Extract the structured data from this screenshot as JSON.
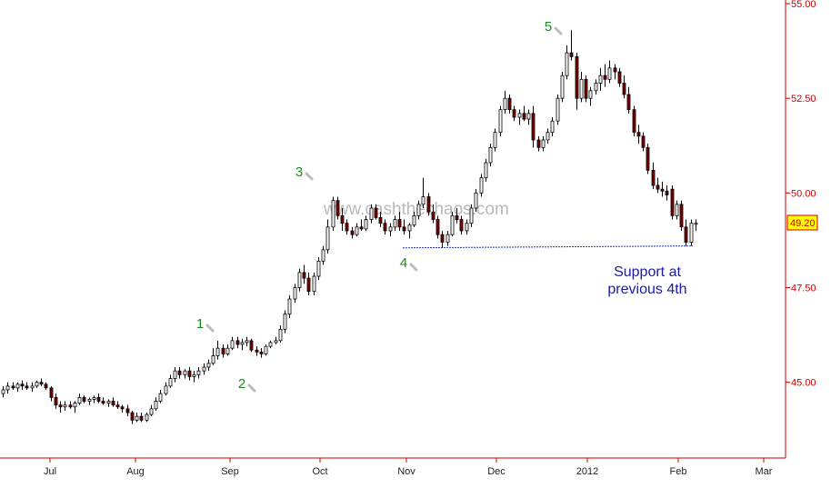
{
  "chart_data": {
    "type": "candlestick",
    "y_axis": {
      "min": 43.0,
      "max": 55.0,
      "ticks": [
        "45.00",
        "47.50",
        "50.00",
        "52.50",
        "55.00"
      ],
      "position": "right"
    },
    "x_axis": {
      "ticks": [
        "Jul",
        "Aug",
        "Sep",
        "Oct",
        "Nov",
        "Dec",
        "2012",
        "Feb",
        "Mar"
      ]
    },
    "last_price": "49.20",
    "watermark": "www.cashthechaos.com",
    "wave_labels": [
      "1",
      "2",
      "3",
      "4",
      "5"
    ],
    "annotation": {
      "line1": "Support at",
      "line2": "previous 4th"
    },
    "support_level": 48.6,
    "colors": {
      "axis": "#cc0000",
      "up_candle": "#ffffff",
      "down_candle": "#7a0000",
      "wave": "#1a8a1a",
      "annotation": "#1a1aaa",
      "support": "#2233bb",
      "last_price_box": "#ffff00"
    },
    "candles": [
      [
        44.7,
        44.9,
        44.6,
        44.8
      ],
      [
        44.8,
        45.0,
        44.7,
        44.9
      ],
      [
        44.9,
        45.0,
        44.8,
        44.85
      ],
      [
        44.85,
        45.0,
        44.75,
        44.95
      ],
      [
        44.95,
        45.05,
        44.8,
        44.9
      ],
      [
        44.9,
        45.0,
        44.8,
        44.85
      ],
      [
        44.85,
        45.0,
        44.75,
        44.9
      ],
      [
        44.9,
        45.05,
        44.85,
        45.0
      ],
      [
        45.0,
        45.1,
        44.9,
        44.95
      ],
      [
        44.95,
        45.0,
        44.8,
        44.85
      ],
      [
        44.85,
        44.9,
        44.5,
        44.6
      ],
      [
        44.6,
        44.7,
        44.3,
        44.4
      ],
      [
        44.4,
        44.5,
        44.2,
        44.35
      ],
      [
        44.35,
        44.5,
        44.25,
        44.4
      ],
      [
        44.4,
        44.5,
        44.3,
        44.35
      ],
      [
        44.35,
        44.5,
        44.2,
        44.45
      ],
      [
        44.45,
        44.7,
        44.4,
        44.6
      ],
      [
        44.6,
        44.65,
        44.45,
        44.5
      ],
      [
        44.5,
        44.6,
        44.4,
        44.55
      ],
      [
        44.55,
        44.65,
        44.45,
        44.6
      ],
      [
        44.6,
        44.7,
        44.45,
        44.5
      ],
      [
        44.5,
        44.6,
        44.4,
        44.45
      ],
      [
        44.45,
        44.55,
        44.35,
        44.5
      ],
      [
        44.5,
        44.6,
        44.35,
        44.4
      ],
      [
        44.4,
        44.5,
        44.3,
        44.35
      ],
      [
        44.35,
        44.4,
        44.2,
        44.3
      ],
      [
        44.3,
        44.4,
        44.1,
        44.2
      ],
      [
        44.2,
        44.25,
        43.9,
        44.0
      ],
      [
        44.0,
        44.2,
        43.95,
        44.1
      ],
      [
        44.1,
        44.2,
        43.95,
        44.0
      ],
      [
        44.0,
        44.2,
        43.95,
        44.15
      ],
      [
        44.15,
        44.4,
        44.1,
        44.3
      ],
      [
        44.3,
        44.6,
        44.25,
        44.5
      ],
      [
        44.5,
        44.8,
        44.45,
        44.7
      ],
      [
        44.7,
        45.0,
        44.65,
        44.9
      ],
      [
        44.9,
        45.2,
        44.85,
        45.1
      ],
      [
        45.1,
        45.4,
        45.0,
        45.3
      ],
      [
        45.3,
        45.4,
        45.1,
        45.2
      ],
      [
        45.2,
        45.35,
        45.1,
        45.3
      ],
      [
        45.3,
        45.4,
        45.05,
        45.15
      ],
      [
        45.15,
        45.3,
        45.0,
        45.2
      ],
      [
        45.2,
        45.4,
        45.1,
        45.3
      ],
      [
        45.3,
        45.5,
        45.2,
        45.4
      ],
      [
        45.4,
        45.6,
        45.3,
        45.5
      ],
      [
        45.5,
        45.9,
        45.45,
        45.7
      ],
      [
        45.7,
        46.1,
        45.6,
        45.9
      ],
      [
        45.9,
        46.0,
        45.65,
        45.75
      ],
      [
        45.75,
        46.0,
        45.7,
        45.9
      ],
      [
        45.9,
        46.2,
        45.85,
        46.1
      ],
      [
        46.1,
        46.2,
        45.9,
        46.0
      ],
      [
        46.0,
        46.15,
        45.85,
        46.05
      ],
      [
        46.05,
        46.2,
        45.95,
        46.1
      ],
      [
        46.1,
        46.15,
        45.8,
        45.85
      ],
      [
        45.85,
        45.95,
        45.7,
        45.8
      ],
      [
        45.8,
        45.9,
        45.65,
        45.75
      ],
      [
        45.75,
        46.0,
        45.7,
        45.95
      ],
      [
        45.95,
        46.1,
        45.9,
        46.05
      ],
      [
        46.05,
        46.2,
        46.0,
        46.1
      ],
      [
        46.1,
        46.5,
        46.05,
        46.4
      ],
      [
        46.4,
        46.9,
        46.3,
        46.8
      ],
      [
        46.8,
        47.3,
        46.7,
        47.2
      ],
      [
        47.2,
        47.6,
        47.1,
        47.5
      ],
      [
        47.5,
        48.0,
        47.4,
        47.9
      ],
      [
        47.9,
        48.1,
        47.6,
        47.75
      ],
      [
        47.75,
        47.9,
        47.3,
        47.4
      ],
      [
        47.4,
        47.9,
        47.3,
        47.8
      ],
      [
        47.8,
        48.3,
        47.7,
        48.2
      ],
      [
        48.2,
        48.6,
        48.1,
        48.5
      ],
      [
        48.5,
        49.3,
        48.4,
        49.1
      ],
      [
        49.1,
        49.9,
        49.0,
        49.8
      ],
      [
        49.8,
        49.9,
        49.3,
        49.4
      ],
      [
        49.4,
        49.6,
        49.0,
        49.2
      ],
      [
        49.2,
        49.3,
        48.9,
        49.0
      ],
      [
        49.0,
        49.1,
        48.8,
        48.9
      ],
      [
        48.9,
        49.2,
        48.85,
        49.1
      ],
      [
        49.1,
        49.3,
        49.0,
        49.05
      ],
      [
        49.05,
        49.4,
        49.0,
        49.3
      ],
      [
        49.3,
        49.7,
        49.2,
        49.6
      ],
      [
        49.6,
        49.7,
        49.3,
        49.35
      ],
      [
        49.35,
        49.5,
        49.1,
        49.2
      ],
      [
        49.2,
        49.3,
        48.9,
        49.0
      ],
      [
        49.0,
        49.2,
        48.85,
        49.1
      ],
      [
        49.1,
        49.4,
        49.0,
        49.3
      ],
      [
        49.3,
        49.5,
        49.0,
        49.1
      ],
      [
        49.1,
        49.3,
        48.9,
        49.0
      ],
      [
        49.0,
        49.2,
        48.8,
        49.15
      ],
      [
        49.15,
        49.5,
        49.1,
        49.4
      ],
      [
        49.4,
        49.8,
        49.3,
        49.7
      ],
      [
        49.7,
        50.4,
        49.6,
        49.9
      ],
      [
        49.9,
        50.0,
        49.4,
        49.5
      ],
      [
        49.5,
        49.7,
        49.2,
        49.3
      ],
      [
        49.3,
        49.4,
        48.8,
        48.9
      ],
      [
        48.9,
        49.0,
        48.55,
        48.7
      ],
      [
        48.7,
        49.0,
        48.6,
        48.9
      ],
      [
        48.9,
        49.5,
        48.85,
        49.4
      ],
      [
        49.4,
        49.6,
        49.2,
        49.3
      ],
      [
        49.3,
        49.4,
        48.9,
        49.0
      ],
      [
        49.0,
        49.3,
        48.9,
        49.2
      ],
      [
        49.2,
        49.7,
        49.1,
        49.6
      ],
      [
        49.6,
        50.1,
        49.5,
        50.0
      ],
      [
        50.0,
        50.5,
        49.9,
        50.4
      ],
      [
        50.4,
        50.9,
        50.3,
        50.8
      ],
      [
        50.8,
        51.3,
        50.7,
        51.2
      ],
      [
        51.2,
        51.7,
        51.1,
        51.6
      ],
      [
        51.6,
        52.3,
        51.5,
        52.2
      ],
      [
        52.2,
        52.7,
        52.1,
        52.5
      ],
      [
        52.5,
        52.6,
        52.1,
        52.2
      ],
      [
        52.2,
        52.3,
        51.9,
        52.0
      ],
      [
        52.0,
        52.2,
        51.8,
        52.1
      ],
      [
        52.1,
        52.3,
        51.9,
        51.95
      ],
      [
        51.95,
        52.2,
        51.8,
        52.1
      ],
      [
        52.1,
        52.3,
        51.2,
        51.4
      ],
      [
        51.4,
        51.5,
        51.1,
        51.2
      ],
      [
        51.2,
        51.5,
        51.1,
        51.4
      ],
      [
        51.4,
        51.7,
        51.3,
        51.6
      ],
      [
        51.6,
        52.0,
        51.5,
        51.9
      ],
      [
        51.9,
        52.6,
        51.8,
        52.5
      ],
      [
        52.5,
        53.2,
        52.4,
        53.1
      ],
      [
        53.1,
        53.9,
        53.0,
        53.7
      ],
      [
        53.7,
        54.3,
        53.5,
        53.6
      ],
      [
        53.6,
        53.7,
        52.2,
        52.5
      ],
      [
        52.5,
        53.2,
        52.4,
        53.0
      ],
      [
        53.0,
        53.1,
        52.4,
        52.5
      ],
      [
        52.5,
        52.8,
        52.3,
        52.7
      ],
      [
        52.7,
        53.0,
        52.6,
        52.9
      ],
      [
        52.9,
        53.3,
        52.7,
        53.1
      ],
      [
        53.1,
        53.4,
        52.8,
        53.0
      ],
      [
        53.0,
        53.5,
        52.9,
        53.3
      ],
      [
        53.3,
        53.4,
        53.0,
        53.2
      ],
      [
        53.2,
        53.3,
        52.8,
        52.9
      ],
      [
        52.9,
        53.1,
        52.5,
        52.6
      ],
      [
        52.6,
        52.8,
        52.1,
        52.2
      ],
      [
        52.2,
        52.3,
        51.5,
        51.6
      ],
      [
        51.6,
        51.8,
        51.3,
        51.5
      ],
      [
        51.5,
        51.6,
        51.1,
        51.2
      ],
      [
        51.2,
        51.3,
        50.5,
        50.6
      ],
      [
        50.6,
        50.8,
        50.1,
        50.2
      ],
      [
        50.2,
        50.4,
        50.0,
        50.1
      ],
      [
        50.1,
        50.3,
        49.9,
        50.05
      ],
      [
        50.05,
        50.2,
        49.8,
        49.95
      ],
      [
        50.1,
        50.2,
        49.3,
        49.4
      ],
      [
        49.4,
        49.8,
        49.3,
        49.7
      ],
      [
        49.7,
        49.8,
        49.0,
        49.1
      ],
      [
        49.1,
        49.3,
        48.6,
        48.7
      ],
      [
        48.7,
        49.3,
        48.6,
        49.2
      ],
      [
        49.2,
        49.3,
        49.0,
        49.2
      ]
    ]
  }
}
